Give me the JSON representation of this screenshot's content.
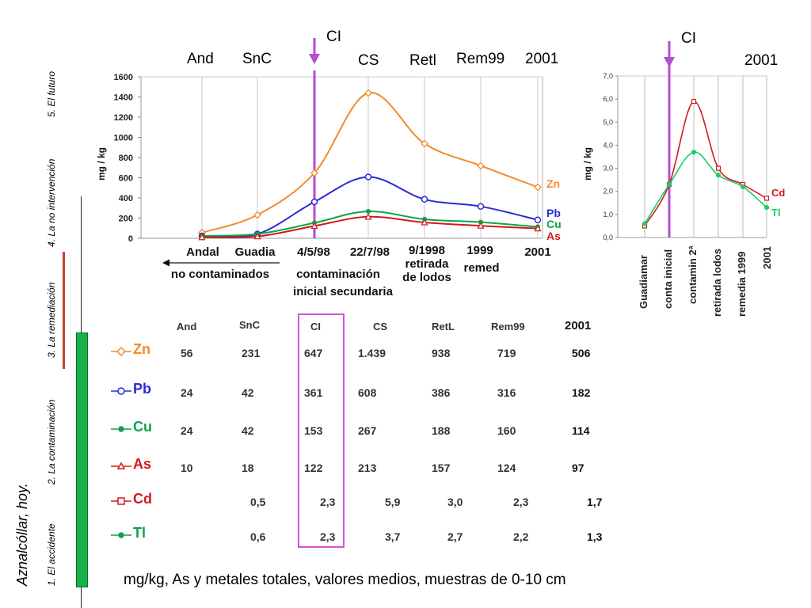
{
  "side_title": "Aznalcóllar, hoy.",
  "phases": [
    "1. El accidente",
    "2. La contaminación",
    "3. La remediación",
    "4. La no intervención",
    "5. El futuro"
  ],
  "top_labels_left": [
    "And",
    "SnC",
    "CS",
    "Retl",
    "Rem99",
    "2001"
  ],
  "ci_label": "CI",
  "top_label_right": "2001",
  "x_labels_left": [
    {
      "lines": [
        "Andal"
      ]
    },
    {
      "lines": [
        "Guadia"
      ]
    },
    {
      "lines": [
        "4/5/98"
      ]
    },
    {
      "lines": [
        "22/7/98"
      ]
    },
    {
      "lines": [
        "9/1998",
        "retirada",
        "de lodos"
      ]
    },
    {
      "lines": [
        "1999",
        "remed"
      ]
    },
    {
      "lines": [
        "2001"
      ]
    }
  ],
  "group_labels": {
    "no_contaminados": "no contaminados",
    "contaminacion": [
      "contaminación",
      "inicial secundaria"
    ]
  },
  "x_labels_right": [
    "Guadiamar",
    "conta inicial",
    "contamin 2ª",
    "retirada lodos",
    "remedia 1999",
    "2001"
  ],
  "table": {
    "headers": [
      "And",
      "SnC",
      "CI",
      "CS",
      "RetL",
      "Rem99",
      "2001"
    ],
    "rows": [
      {
        "label": "Zn",
        "color": "#f28a2e",
        "marker": "diamond",
        "values": [
          "56",
          "231",
          "647",
          "1.439",
          "938",
          "719",
          "506"
        ]
      },
      {
        "label": "Pb",
        "color": "#2a2ad6",
        "marker": "circle",
        "values": [
          "24",
          "42",
          "361",
          "608",
          "386",
          "316",
          "182"
        ]
      },
      {
        "label": "Cu",
        "color": "#0fa34a",
        "marker": "dot",
        "values": [
          "24",
          "42",
          "153",
          "267",
          "188",
          "160",
          "114"
        ]
      },
      {
        "label": "As",
        "color": "#d11a1a",
        "marker": "triangle",
        "values": [
          "10",
          "18",
          "122",
          "213",
          "157",
          "124",
          "97"
        ]
      },
      {
        "label": "Cd",
        "color": "#d11a1a",
        "marker": "square",
        "values": [
          "",
          "0,5",
          "2,3",
          "5,9",
          "3,0",
          "2,3",
          "1,7"
        ]
      },
      {
        "label": "Tl",
        "color": "#0fa34a",
        "marker": "dot",
        "values": [
          "",
          "0,6",
          "2,3",
          "3,7",
          "2,7",
          "2,2",
          "1,3"
        ]
      }
    ]
  },
  "footnote": "mg/kg,  As y metales totales, valores medios, muestras de 0-10 cm",
  "chart_data": [
    {
      "type": "line",
      "categories": [
        "Andal",
        "Guadia",
        "4/5/98",
        "22/7/98",
        "9/1998 retirada de lodos",
        "1999 remed",
        "2001"
      ],
      "ylabel": "mg / kg",
      "ylim": [
        0,
        1600
      ],
      "yticks": [
        0,
        200,
        400,
        600,
        800,
        1000,
        1200,
        1400,
        1600
      ],
      "grid": "vertical",
      "series": [
        {
          "name": "Zn",
          "color": "#f28a2e",
          "values": [
            56,
            231,
            647,
            1439,
            938,
            719,
            506
          ]
        },
        {
          "name": "Pb",
          "color": "#2a2ad6",
          "values": [
            24,
            42,
            361,
            608,
            386,
            316,
            182
          ]
        },
        {
          "name": "Cu",
          "color": "#0fa34a",
          "values": [
            24,
            42,
            153,
            267,
            188,
            160,
            114
          ]
        },
        {
          "name": "As",
          "color": "#d11a1a",
          "values": [
            10,
            18,
            122,
            213,
            157,
            124,
            97
          ]
        }
      ]
    },
    {
      "type": "line",
      "categories": [
        "Guadiamar",
        "conta inicial",
        "contamin 2ª",
        "retirada lodos",
        "remedia 1999",
        "2001"
      ],
      "ylabel": "mg / kg",
      "ylim": [
        0,
        7
      ],
      "yticks": [
        "0,0",
        "1,0",
        "2,0",
        "3,0",
        "4,0",
        "5,0",
        "6,0",
        "7,0"
      ],
      "grid": "vertical",
      "series": [
        {
          "name": "Cd",
          "color": "#d11a1a",
          "values": [
            0.5,
            2.3,
            5.9,
            3.0,
            2.3,
            1.7
          ]
        },
        {
          "name": "Tl",
          "color": "#1fcc6a",
          "values": [
            0.6,
            2.3,
            3.7,
            2.7,
            2.2,
            1.3
          ]
        }
      ]
    }
  ]
}
